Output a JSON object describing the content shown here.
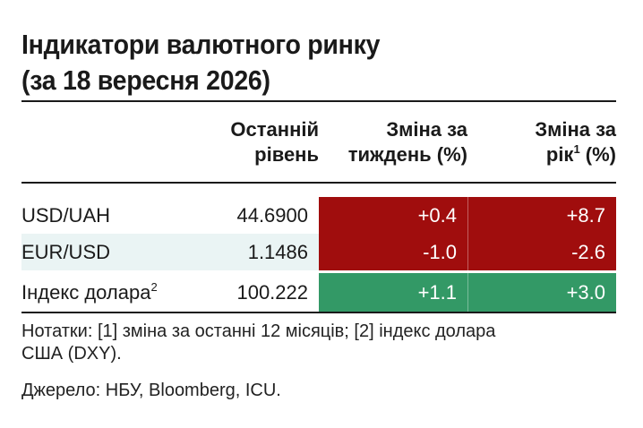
{
  "title_line1": "Індикатори валютного ринку",
  "title_line2": "(за 18 вересня 2026)",
  "columns": {
    "level_line1": "Останній",
    "level_line2": "рівень",
    "week_line1": "Зміна за",
    "week_line2": "тиждень (%)",
    "year_line1": "Зміна за",
    "year_line2a": "рік",
    "year_sup": "1",
    "year_line2b": " (%)"
  },
  "rows": [
    {
      "name": "USD/UAH",
      "sup": "",
      "level": "44.6900",
      "week": "+0.4",
      "year": "+8.7",
      "week_color": "#a00d0d",
      "year_color": "#a00d0d"
    },
    {
      "name": "EUR/USD",
      "sup": "",
      "level": "1.1486",
      "week": "-1.0",
      "year": "-2.6",
      "week_color": "#a00d0d",
      "year_color": "#a00d0d"
    },
    {
      "name": "Індекс долара",
      "sup": "2",
      "level": "100.222",
      "week": "+1.1",
      "year": "+3.0",
      "week_color": "#339966",
      "year_color": "#339966"
    }
  ],
  "notes_line1": "Нотатки: [1] зміна за останні 12 місяців; [2] індекс долара",
  "notes_line2": "США (DXY).",
  "source": "Джерело: НБУ, Bloomberg, ICU."
}
